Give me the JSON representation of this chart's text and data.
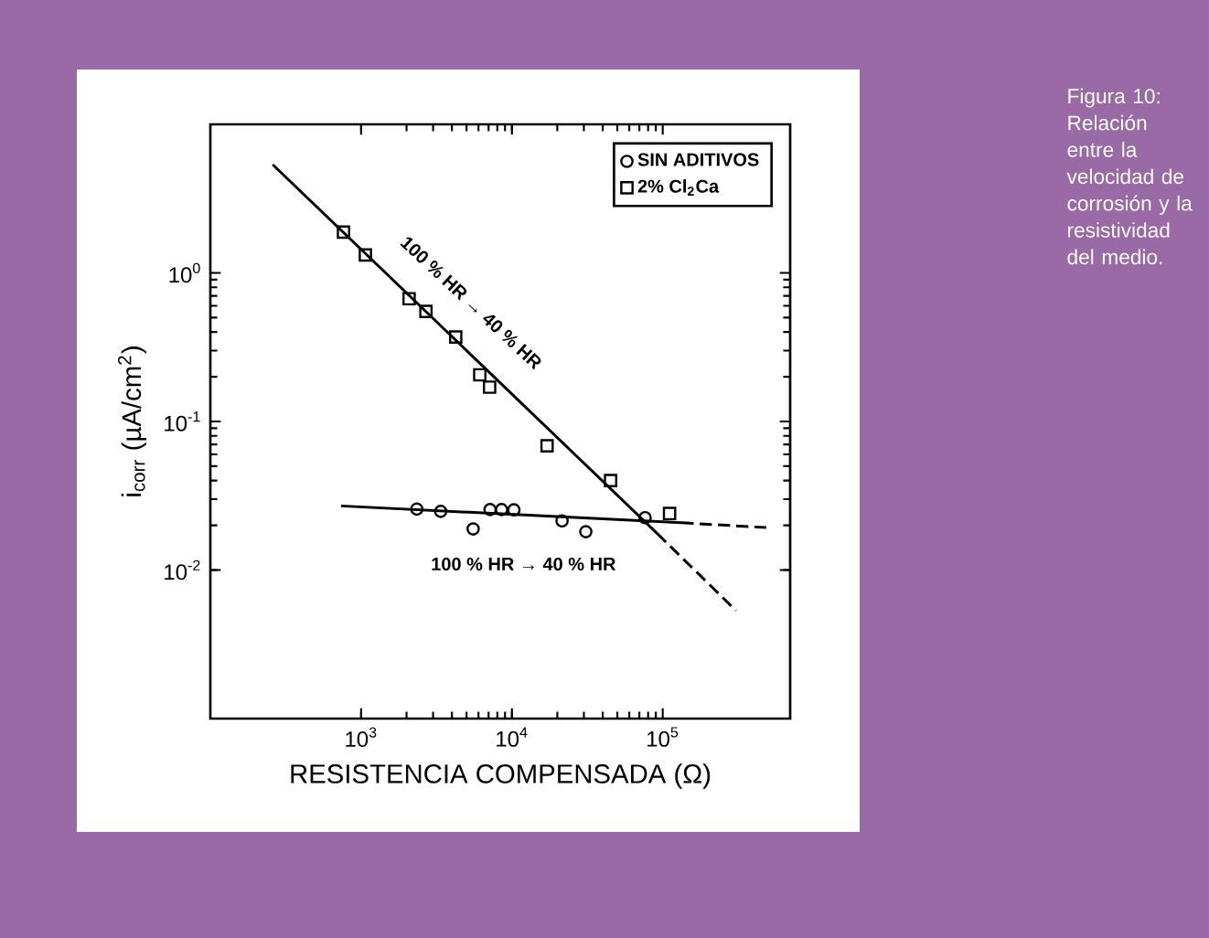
{
  "chart_data": {
    "type": "scatter",
    "xlabel": "RESISTENCIA COMPENSADA (Ω)",
    "ylabel": "i$_{corr}$ (µA/cm$^{2}$)",
    "log": "xy",
    "xlim": [
      100,
      700000
    ],
    "ylim": [
      0.001,
      10
    ],
    "xticks": [
      {
        "value": 1000,
        "label": "10$^{3}$"
      },
      {
        "value": 10000,
        "label": "10$^{4}$"
      },
      {
        "value": 100000,
        "label": "10$^{5}$"
      }
    ],
    "yticks": [
      {
        "value": 0.01,
        "label": "10$^{-2}$"
      },
      {
        "value": 0.1,
        "label": "10$^{-1}$"
      },
      {
        "value": 1,
        "label": "10$^{0}$"
      }
    ],
    "grid": false,
    "legend": "top right",
    "series": [
      {
        "name": "SIN ADITIVOS",
        "color": "#000000",
        "marker": "circle",
        "x": [
          2340,
          3370,
          5530,
          7160,
          8540,
          10300,
          21500,
          30900,
          76400
        ],
        "values": [
          0.0257,
          0.0248,
          0.0189,
          0.0255,
          0.0255,
          0.0254,
          0.0214,
          0.0181,
          0.0225
        ]
      },
      {
        "name": "2% Cl$_{2}$Ca",
        "color": "#000000",
        "marker": "square",
        "x": [
          764,
          1067,
          2080,
          2690,
          4240,
          6120,
          7110,
          17100,
          45100,
          111000
        ],
        "values": [
          1.88,
          1.32,
          0.67,
          0.55,
          0.37,
          0.206,
          0.17,
          0.0686,
          0.04,
          0.024
        ]
      },
      {
        "type": "line",
        "color": "#000000",
        "marker": "none",
        "line_style": "solid",
        "x": [
          259,
          92000
        ],
        "values": [
          5.36,
          0.0176
        ]
      },
      {
        "type": "line",
        "color": "#000000",
        "marker": "none",
        "line_style": "dashed",
        "x": [
          92000,
          306000
        ],
        "values": [
          0.0176,
          0.00533
        ]
      },
      {
        "type": "line",
        "color": "#000000",
        "marker": "none",
        "line_style": "solid",
        "x": [
          736,
          133000
        ],
        "values": [
          0.027,
          0.0208
        ]
      },
      {
        "type": "line",
        "color": "#000000",
        "marker": "none",
        "line_style": "dashed",
        "x": [
          133000,
          486000
        ],
        "values": [
          0.0208,
          0.0193
        ]
      }
    ],
    "annotations": [
      "100 % HR → 40 % HR",
      "100 % HR → 40 % HR",
      "Figura 10: Relación entre la velocidad de corrosión y la resistividad del medio."
    ]
  }
}
